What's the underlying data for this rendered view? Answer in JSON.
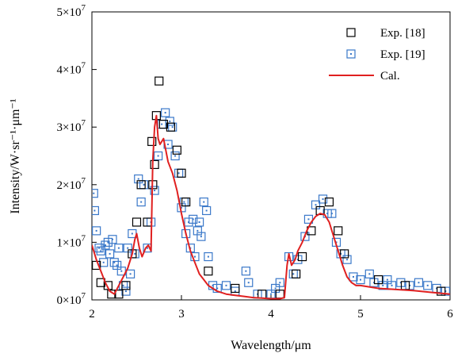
{
  "chart_data": {
    "type": "scatter",
    "xlabel": "Wavelength/μm",
    "ylabel": "Intensity/W·sr⁻¹·μm⁻¹",
    "xlim": [
      2,
      6
    ],
    "ylim": [
      0,
      50000000
    ],
    "x_ticks": [
      2,
      3,
      4,
      5,
      6
    ],
    "x_tick_labels": [
      "2",
      "3",
      "4",
      "5",
      "6"
    ],
    "y_ticks": [
      0,
      10000000,
      20000000,
      30000000,
      40000000,
      50000000
    ],
    "y_tick_labels": [
      "0×10",
      "1×10",
      "2×10",
      "3×10",
      "4×10",
      "5×10"
    ],
    "y_tick_exponent": "7",
    "grid": false,
    "legend_position": "top-right",
    "series": [
      {
        "name": "Exp. [18]",
        "marker": "open-square",
        "color": "#000000",
        "x": [
          2.05,
          2.1,
          2.18,
          2.22,
          2.3,
          2.38,
          2.45,
          2.5,
          2.55,
          2.62,
          2.67,
          2.68,
          2.7,
          2.72,
          2.75,
          2.8,
          2.88,
          2.95,
          3.0,
          3.05,
          3.3,
          3.6,
          3.9,
          4.1,
          4.28,
          4.35,
          4.45,
          4.55,
          4.65,
          4.75,
          4.82,
          5.2,
          5.5,
          5.9
        ],
        "y": [
          6000000,
          3000000,
          2500000,
          1000000,
          1000000,
          2500000,
          8000000,
          13500000,
          20000000,
          13500000,
          27500000,
          20000000,
          23500000,
          32000000,
          38000000,
          30500000,
          30000000,
          26000000,
          22000000,
          17000000,
          5000000,
          2000000,
          1000000,
          1000000,
          4500000,
          7500000,
          12000000,
          15500000,
          17000000,
          12000000,
          8000000,
          3500000,
          2500000,
          1500000
        ]
      },
      {
        "name": "Exp. [19]",
        "marker": "open-square",
        "color": "#3a78c9",
        "x": [
          2.02,
          2.03,
          2.05,
          2.08,
          2.1,
          2.13,
          2.15,
          2.18,
          2.2,
          2.23,
          2.25,
          2.28,
          2.3,
          2.33,
          2.35,
          2.38,
          2.4,
          2.43,
          2.45,
          2.48,
          2.52,
          2.55,
          2.58,
          2.62,
          2.66,
          2.7,
          2.74,
          2.78,
          2.82,
          2.85,
          2.87,
          2.9,
          2.93,
          2.97,
          3.0,
          3.03,
          3.05,
          3.08,
          3.1,
          3.13,
          3.15,
          3.18,
          3.2,
          3.22,
          3.25,
          3.28,
          3.3,
          3.35,
          3.4,
          3.5,
          3.6,
          3.72,
          3.75,
          3.85,
          4.0,
          4.05,
          4.1,
          4.2,
          4.25,
          4.3,
          4.38,
          4.42,
          4.5,
          4.58,
          4.63,
          4.68,
          4.73,
          4.78,
          4.85,
          4.92,
          5.0,
          5.1,
          5.15,
          5.25,
          5.3,
          5.35,
          5.45,
          5.55,
          5.65,
          5.75,
          5.85,
          5.95
        ],
        "y": [
          18500000,
          15500000,
          12000000,
          9000000,
          8500000,
          6500000,
          9500000,
          10000000,
          8000000,
          10500000,
          6500000,
          6000000,
          9000000,
          5000000,
          2500000,
          1500000,
          9000000,
          4500000,
          11500000,
          8000000,
          21000000,
          17000000,
          20000000,
          9000000,
          13500000,
          19000000,
          25000000,
          30500000,
          32500000,
          27000000,
          31000000,
          30000000,
          25000000,
          22000000,
          16000000,
          17000000,
          11500000,
          13500000,
          9000000,
          14000000,
          7500000,
          12000000,
          13500000,
          11000000,
          17000000,
          15500000,
          7500000,
          2500000,
          2000000,
          2500000,
          1500000,
          5000000,
          3000000,
          1000000,
          1000000,
          2000000,
          3000000,
          7500000,
          4500000,
          7000000,
          11000000,
          14000000,
          16500000,
          17500000,
          15000000,
          15000000,
          10000000,
          8000000,
          7000000,
          4000000,
          3500000,
          4500000,
          3000000,
          2500000,
          3500000,
          2500000,
          3000000,
          2500000,
          3000000,
          2500000,
          2000000,
          1500000
        ]
      },
      {
        "name": "Cal.",
        "type": "line",
        "color": "#e02020",
        "x": [
          2.0,
          2.05,
          2.1,
          2.15,
          2.2,
          2.25,
          2.3,
          2.35,
          2.4,
          2.45,
          2.48,
          2.5,
          2.53,
          2.56,
          2.6,
          2.63,
          2.66,
          2.68,
          2.7,
          2.72,
          2.74,
          2.76,
          2.8,
          2.85,
          2.9,
          2.95,
          3.0,
          3.05,
          3.1,
          3.15,
          3.2,
          3.3,
          3.4,
          3.5,
          3.6,
          3.7,
          3.8,
          3.9,
          4.0,
          4.1,
          4.15,
          4.18,
          4.2,
          4.23,
          4.27,
          4.3,
          4.35,
          4.4,
          4.45,
          4.5,
          4.55,
          4.6,
          4.65,
          4.7,
          4.75,
          4.8,
          4.85,
          4.9,
          4.95,
          5.0,
          5.2,
          5.4,
          5.6,
          5.8,
          6.0
        ],
        "y": [
          9500000,
          7000000,
          5000000,
          3000000,
          1500000,
          1000000,
          2500000,
          4000000,
          5500000,
          8000000,
          10500000,
          11500000,
          9000000,
          7500000,
          9000000,
          9500000,
          8500000,
          24000000,
          30000000,
          32000000,
          28000000,
          27000000,
          28000000,
          24000000,
          22000000,
          19000000,
          15000000,
          11500000,
          8500000,
          6500000,
          4500000,
          2500000,
          1500000,
          1000000,
          800000,
          600000,
          400000,
          300000,
          200000,
          200000,
          400000,
          6000000,
          8000000,
          6000000,
          7000000,
          8500000,
          10000000,
          12000000,
          13500000,
          14500000,
          15000000,
          14800000,
          13500000,
          11000000,
          8500000,
          6000000,
          4000000,
          3000000,
          2500000,
          2500000,
          2000000,
          1800000,
          1600000,
          1300000,
          1000000
        ]
      }
    ]
  }
}
